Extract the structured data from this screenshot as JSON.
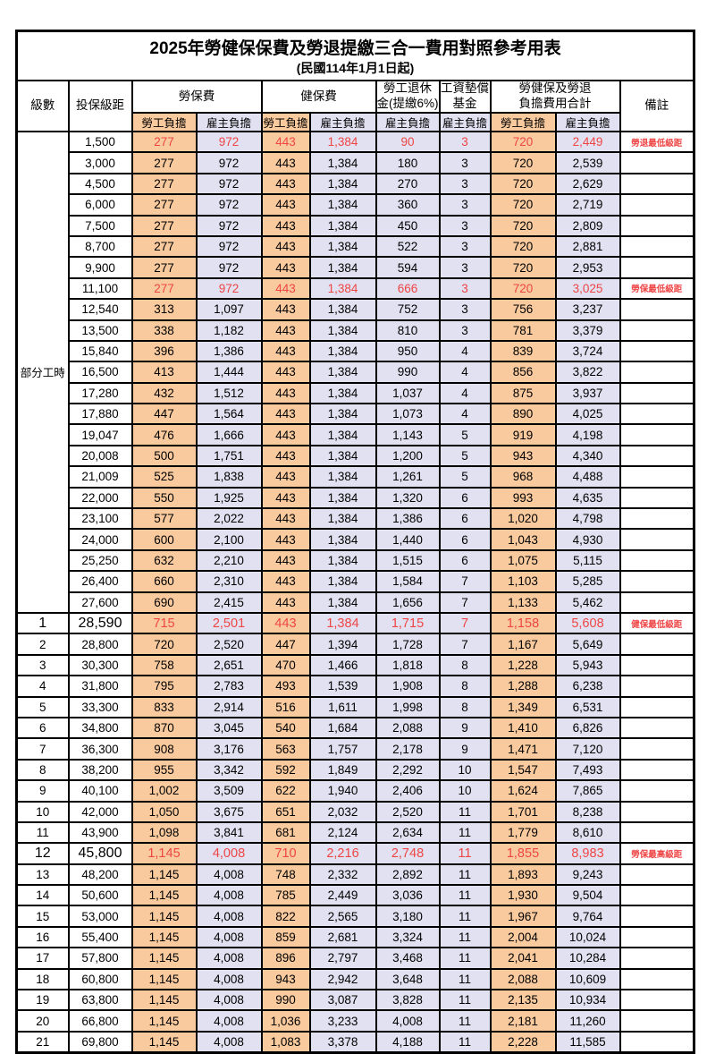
{
  "title": "2025年勞健保保費及勞退提繳三合一費用對照參考用表",
  "subtitle": "(民國114年1月1日起)",
  "colors": {
    "employee_fill": "#F9CA9E",
    "employer_fill": "#E2E1F1",
    "highlight_red": "#EE4545",
    "border": "#000000"
  },
  "header": {
    "level": "級數",
    "salary": "投保級距",
    "labor_insurance": "勞保費",
    "health_insurance": "健保費",
    "pension": {
      "line1": "勞工退休",
      "line2": "金(提繳6%)"
    },
    "wage_fund": {
      "line1": "工資墊償",
      "line2": "基金"
    },
    "total": {
      "line1": "勞健保及勞退",
      "line2": "負擔費用合計"
    },
    "remark": "備註",
    "employee": "勞工負擔",
    "employer": "雇主負擔"
  },
  "part_time": {
    "label": "部分工時",
    "rowspan": 23
  },
  "rows": [
    {
      "level": "",
      "salary": "1,500",
      "values": [
        "277",
        "972",
        "443",
        "1,384",
        "90",
        "3",
        "720",
        "2,449"
      ],
      "remark": "勞退最低級距",
      "red": true,
      "big": false
    },
    {
      "level": "",
      "salary": "3,000",
      "values": [
        "277",
        "972",
        "443",
        "1,384",
        "180",
        "3",
        "720",
        "2,539"
      ],
      "remark": "",
      "red": false,
      "big": false
    },
    {
      "level": "",
      "salary": "4,500",
      "values": [
        "277",
        "972",
        "443",
        "1,384",
        "270",
        "3",
        "720",
        "2,629"
      ],
      "remark": "",
      "red": false,
      "big": false
    },
    {
      "level": "",
      "salary": "6,000",
      "values": [
        "277",
        "972",
        "443",
        "1,384",
        "360",
        "3",
        "720",
        "2,719"
      ],
      "remark": "",
      "red": false,
      "big": false
    },
    {
      "level": "",
      "salary": "7,500",
      "values": [
        "277",
        "972",
        "443",
        "1,384",
        "450",
        "3",
        "720",
        "2,809"
      ],
      "remark": "",
      "red": false,
      "big": false
    },
    {
      "level": "",
      "salary": "8,700",
      "values": [
        "277",
        "972",
        "443",
        "1,384",
        "522",
        "3",
        "720",
        "2,881"
      ],
      "remark": "",
      "red": false,
      "big": false
    },
    {
      "level": "",
      "salary": "9,900",
      "values": [
        "277",
        "972",
        "443",
        "1,384",
        "594",
        "3",
        "720",
        "2,953"
      ],
      "remark": "",
      "red": false,
      "big": false
    },
    {
      "level": "",
      "salary": "11,100",
      "values": [
        "277",
        "972",
        "443",
        "1,384",
        "666",
        "3",
        "720",
        "3,025"
      ],
      "remark": "勞保最低級距",
      "red": true,
      "big": false
    },
    {
      "level": "",
      "salary": "12,540",
      "values": [
        "313",
        "1,097",
        "443",
        "1,384",
        "752",
        "3",
        "756",
        "3,237"
      ],
      "remark": "",
      "red": false,
      "big": false
    },
    {
      "level": "",
      "salary": "13,500",
      "values": [
        "338",
        "1,182",
        "443",
        "1,384",
        "810",
        "3",
        "781",
        "3,379"
      ],
      "remark": "",
      "red": false,
      "big": false
    },
    {
      "level": "",
      "salary": "15,840",
      "values": [
        "396",
        "1,386",
        "443",
        "1,384",
        "950",
        "4",
        "839",
        "3,724"
      ],
      "remark": "",
      "red": false,
      "big": false
    },
    {
      "level": "",
      "salary": "16,500",
      "values": [
        "413",
        "1,444",
        "443",
        "1,384",
        "990",
        "4",
        "856",
        "3,822"
      ],
      "remark": "",
      "red": false,
      "big": false
    },
    {
      "level": "",
      "salary": "17,280",
      "values": [
        "432",
        "1,512",
        "443",
        "1,384",
        "1,037",
        "4",
        "875",
        "3,937"
      ],
      "remark": "",
      "red": false,
      "big": false
    },
    {
      "level": "",
      "salary": "17,880",
      "values": [
        "447",
        "1,564",
        "443",
        "1,384",
        "1,073",
        "4",
        "890",
        "4,025"
      ],
      "remark": "",
      "red": false,
      "big": false
    },
    {
      "level": "",
      "salary": "19,047",
      "values": [
        "476",
        "1,666",
        "443",
        "1,384",
        "1,143",
        "5",
        "919",
        "4,198"
      ],
      "remark": "",
      "red": false,
      "big": false
    },
    {
      "level": "",
      "salary": "20,008",
      "values": [
        "500",
        "1,751",
        "443",
        "1,384",
        "1,200",
        "5",
        "943",
        "4,340"
      ],
      "remark": "",
      "red": false,
      "big": false
    },
    {
      "level": "",
      "salary": "21,009",
      "values": [
        "525",
        "1,838",
        "443",
        "1,384",
        "1,261",
        "5",
        "968",
        "4,488"
      ],
      "remark": "",
      "red": false,
      "big": false
    },
    {
      "level": "",
      "salary": "22,000",
      "values": [
        "550",
        "1,925",
        "443",
        "1,384",
        "1,320",
        "6",
        "993",
        "4,635"
      ],
      "remark": "",
      "red": false,
      "big": false
    },
    {
      "level": "",
      "salary": "23,100",
      "values": [
        "577",
        "2,022",
        "443",
        "1,384",
        "1,386",
        "6",
        "1,020",
        "4,798"
      ],
      "remark": "",
      "red": false,
      "big": false
    },
    {
      "level": "",
      "salary": "24,000",
      "values": [
        "600",
        "2,100",
        "443",
        "1,384",
        "1,440",
        "6",
        "1,043",
        "4,930"
      ],
      "remark": "",
      "red": false,
      "big": false
    },
    {
      "level": "",
      "salary": "25,250",
      "values": [
        "632",
        "2,210",
        "443",
        "1,384",
        "1,515",
        "6",
        "1,075",
        "5,115"
      ],
      "remark": "",
      "red": false,
      "big": false
    },
    {
      "level": "",
      "salary": "26,400",
      "values": [
        "660",
        "2,310",
        "443",
        "1,384",
        "1,584",
        "7",
        "1,103",
        "5,285"
      ],
      "remark": "",
      "red": false,
      "big": false
    },
    {
      "level": "",
      "salary": "27,600",
      "values": [
        "690",
        "2,415",
        "443",
        "1,384",
        "1,656",
        "7",
        "1,133",
        "5,462"
      ],
      "remark": "",
      "red": false,
      "big": false
    },
    {
      "level": "1",
      "salary": "28,590",
      "values": [
        "715",
        "2,501",
        "443",
        "1,384",
        "1,715",
        "7",
        "1,158",
        "5,608"
      ],
      "remark": "健保最低級距",
      "red": true,
      "big": true
    },
    {
      "level": "2",
      "salary": "28,800",
      "values": [
        "720",
        "2,520",
        "447",
        "1,394",
        "1,728",
        "7",
        "1,167",
        "5,649"
      ],
      "remark": "",
      "red": false,
      "big": false
    },
    {
      "level": "3",
      "salary": "30,300",
      "values": [
        "758",
        "2,651",
        "470",
        "1,466",
        "1,818",
        "8",
        "1,228",
        "5,943"
      ],
      "remark": "",
      "red": false,
      "big": false
    },
    {
      "level": "4",
      "salary": "31,800",
      "values": [
        "795",
        "2,783",
        "493",
        "1,539",
        "1,908",
        "8",
        "1,288",
        "6,238"
      ],
      "remark": "",
      "red": false,
      "big": false
    },
    {
      "level": "5",
      "salary": "33,300",
      "values": [
        "833",
        "2,914",
        "516",
        "1,611",
        "1,998",
        "8",
        "1,349",
        "6,531"
      ],
      "remark": "",
      "red": false,
      "big": false
    },
    {
      "level": "6",
      "salary": "34,800",
      "values": [
        "870",
        "3,045",
        "540",
        "1,684",
        "2,088",
        "9",
        "1,410",
        "6,826"
      ],
      "remark": "",
      "red": false,
      "big": false
    },
    {
      "level": "7",
      "salary": "36,300",
      "values": [
        "908",
        "3,176",
        "563",
        "1,757",
        "2,178",
        "9",
        "1,471",
        "7,120"
      ],
      "remark": "",
      "red": false,
      "big": false
    },
    {
      "level": "8",
      "salary": "38,200",
      "values": [
        "955",
        "3,342",
        "592",
        "1,849",
        "2,292",
        "10",
        "1,547",
        "7,493"
      ],
      "remark": "",
      "red": false,
      "big": false
    },
    {
      "level": "9",
      "salary": "40,100",
      "values": [
        "1,002",
        "3,509",
        "622",
        "1,940",
        "2,406",
        "10",
        "1,624",
        "7,865"
      ],
      "remark": "",
      "red": false,
      "big": false
    },
    {
      "level": "10",
      "salary": "42,000",
      "values": [
        "1,050",
        "3,675",
        "651",
        "2,032",
        "2,520",
        "11",
        "1,701",
        "8,238"
      ],
      "remark": "",
      "red": false,
      "big": false
    },
    {
      "level": "11",
      "salary": "43,900",
      "values": [
        "1,098",
        "3,841",
        "681",
        "2,124",
        "2,634",
        "11",
        "1,779",
        "8,610"
      ],
      "remark": "",
      "red": false,
      "big": false
    },
    {
      "level": "12",
      "salary": "45,800",
      "values": [
        "1,145",
        "4,008",
        "710",
        "2,216",
        "2,748",
        "11",
        "1,855",
        "8,983"
      ],
      "remark": "勞保最高級距",
      "red": true,
      "big": true
    },
    {
      "level": "13",
      "salary": "48,200",
      "values": [
        "1,145",
        "4,008",
        "748",
        "2,332",
        "2,892",
        "11",
        "1,893",
        "9,243"
      ],
      "remark": "",
      "red": false,
      "big": false
    },
    {
      "level": "14",
      "salary": "50,600",
      "values": [
        "1,145",
        "4,008",
        "785",
        "2,449",
        "3,036",
        "11",
        "1,930",
        "9,504"
      ],
      "remark": "",
      "red": false,
      "big": false
    },
    {
      "level": "15",
      "salary": "53,000",
      "values": [
        "1,145",
        "4,008",
        "822",
        "2,565",
        "3,180",
        "11",
        "1,967",
        "9,764"
      ],
      "remark": "",
      "red": false,
      "big": false
    },
    {
      "level": "16",
      "salary": "55,400",
      "values": [
        "1,145",
        "4,008",
        "859",
        "2,681",
        "3,324",
        "11",
        "2,004",
        "10,024"
      ],
      "remark": "",
      "red": false,
      "big": false
    },
    {
      "level": "17",
      "salary": "57,800",
      "values": [
        "1,145",
        "4,008",
        "896",
        "2,797",
        "3,468",
        "11",
        "2,041",
        "10,284"
      ],
      "remark": "",
      "red": false,
      "big": false
    },
    {
      "level": "18",
      "salary": "60,800",
      "values": [
        "1,145",
        "4,008",
        "943",
        "2,942",
        "3,648",
        "11",
        "2,088",
        "10,609"
      ],
      "remark": "",
      "red": false,
      "big": false
    },
    {
      "level": "19",
      "salary": "63,800",
      "values": [
        "1,145",
        "4,008",
        "990",
        "3,087",
        "3,828",
        "11",
        "2,135",
        "10,934"
      ],
      "remark": "",
      "red": false,
      "big": false
    },
    {
      "level": "20",
      "salary": "66,800",
      "values": [
        "1,145",
        "4,008",
        "1,036",
        "3,233",
        "4,008",
        "11",
        "2,181",
        "11,260"
      ],
      "remark": "",
      "red": false,
      "big": false
    },
    {
      "level": "21",
      "salary": "69,800",
      "values": [
        "1,145",
        "4,008",
        "1,083",
        "3,378",
        "4,188",
        "11",
        "2,228",
        "11,585"
      ],
      "remark": "",
      "red": false,
      "big": false
    }
  ]
}
